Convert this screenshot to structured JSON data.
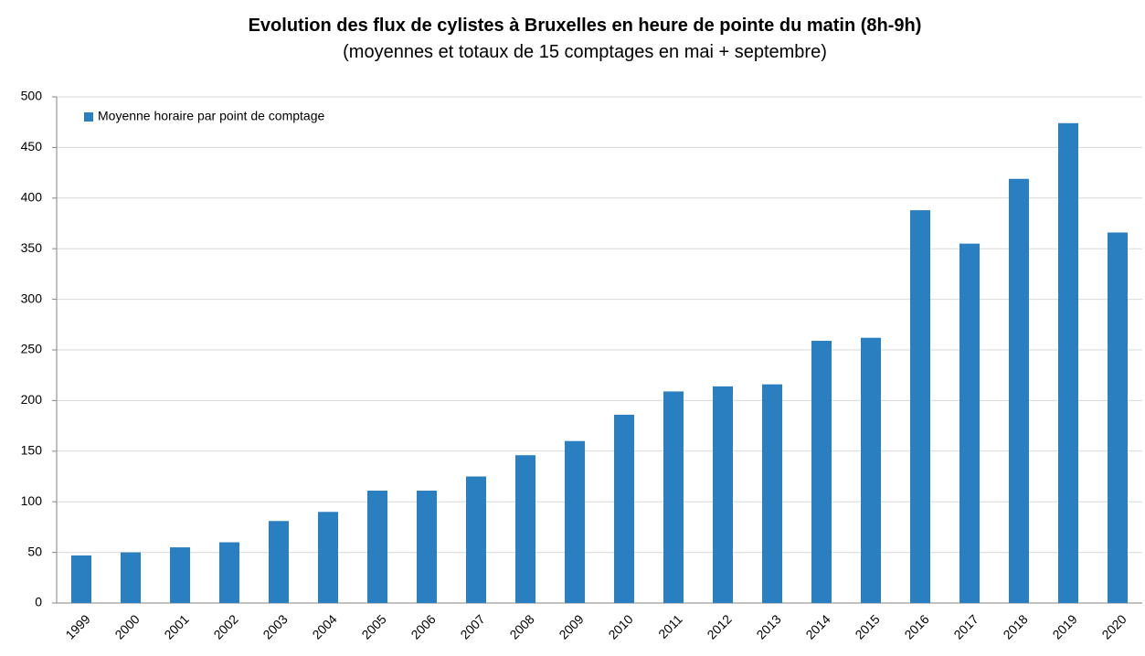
{
  "chart_data": {
    "type": "bar",
    "title": "Evolution des flux de cylistes à Bruxelles en heure de pointe du matin (8h-9h)",
    "subtitle": "(moyennes et totaux de 15 comptages en mai + septembre)",
    "categories": [
      "1999",
      "2000",
      "2001",
      "2002",
      "2003",
      "2004",
      "2005",
      "2006",
      "2007",
      "2008",
      "2009",
      "2010",
      "2011",
      "2012",
      "2013",
      "2014",
      "2015",
      "2016",
      "2017",
      "2018",
      "2019",
      "2020"
    ],
    "series": [
      {
        "name": "Moyenne horaire par point de comptage",
        "color": "#2a7fc0",
        "values": [
          47,
          50,
          55,
          60,
          81,
          90,
          111,
          111,
          125,
          146,
          160,
          186,
          209,
          214,
          216,
          259,
          262,
          388,
          355,
          419,
          474,
          366
        ]
      }
    ],
    "ylim": [
      0,
      500
    ],
    "yticks": [
      0,
      50,
      100,
      150,
      200,
      250,
      300,
      350,
      400,
      450,
      500
    ],
    "grid": true,
    "legend": "top-left"
  }
}
